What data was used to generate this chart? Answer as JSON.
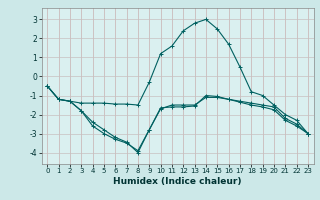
{
  "xlabel": "Humidex (Indice chaleur)",
  "bg_color": "#cce8e8",
  "plot_bg_color": "#daf0f0",
  "grid_color_v": "#c8b0b0",
  "grid_color_h": "#c8c0c0",
  "line_color": "#006060",
  "xlim": [
    -0.5,
    23.5
  ],
  "ylim": [
    -4.6,
    3.6
  ],
  "yticks": [
    -4,
    -3,
    -2,
    -1,
    0,
    1,
    2,
    3
  ],
  "xticks": [
    0,
    1,
    2,
    3,
    4,
    5,
    6,
    7,
    8,
    9,
    10,
    11,
    12,
    13,
    14,
    15,
    16,
    17,
    18,
    19,
    20,
    21,
    22,
    23
  ],
  "series": [
    {
      "x": [
        0,
        1,
        2,
        3,
        4,
        5,
        6,
        7,
        8,
        9,
        10,
        11,
        12,
        13,
        14,
        15,
        16,
        17,
        18,
        19,
        20,
        21,
        22,
        23
      ],
      "y": [
        -0.5,
        -1.2,
        -1.3,
        -1.4,
        -1.4,
        -1.4,
        -1.45,
        -1.45,
        -1.5,
        -0.3,
        1.2,
        1.6,
        2.4,
        2.8,
        3.0,
        2.5,
        1.7,
        0.5,
        -0.8,
        -1.0,
        -1.5,
        -2.0,
        -2.3,
        -3.0
      ]
    },
    {
      "x": [
        0,
        1,
        2,
        3,
        4,
        5,
        6,
        7,
        8,
        9,
        10,
        11,
        12,
        13,
        14,
        15,
        16,
        17,
        18,
        19,
        20,
        21,
        22,
        23
      ],
      "y": [
        -0.5,
        -1.2,
        -1.3,
        -1.8,
        -2.6,
        -3.0,
        -3.3,
        -3.5,
        -3.9,
        -2.8,
        -1.7,
        -1.5,
        -1.5,
        -1.5,
        -1.1,
        -1.1,
        -1.2,
        -1.3,
        -1.4,
        -1.5,
        -1.6,
        -2.2,
        -2.5,
        -3.0
      ]
    },
    {
      "x": [
        0,
        1,
        2,
        3,
        4,
        5,
        6,
        7,
        8,
        9,
        10,
        11,
        12,
        13,
        14,
        15,
        16,
        17,
        18,
        19,
        20,
        21,
        22,
        23
      ],
      "y": [
        -0.5,
        -1.2,
        -1.3,
        -1.8,
        -2.4,
        -2.8,
        -3.2,
        -3.45,
        -4.0,
        -2.8,
        -1.65,
        -1.6,
        -1.6,
        -1.55,
        -1.0,
        -1.05,
        -1.2,
        -1.35,
        -1.5,
        -1.6,
        -1.75,
        -2.3,
        -2.6,
        -3.0
      ]
    }
  ]
}
